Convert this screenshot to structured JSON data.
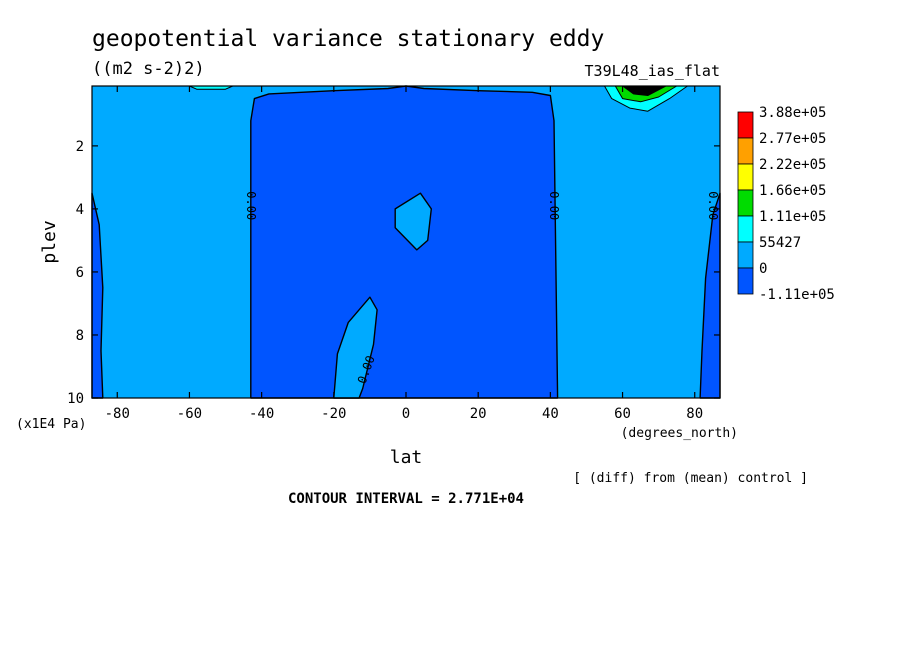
{
  "chart_data": {
    "type": "heatmap",
    "title": "geopotential variance stationary eddy",
    "units": "((m2 s-2)2)",
    "experiment": "T39L48_ias_flat",
    "xlabel": "lat",
    "x_units": "(degrees_north)",
    "ylabel": "plev",
    "y_units": "(x1E4 Pa)",
    "xlim": [
      -87,
      87
    ],
    "ylim": [
      10,
      0.1
    ],
    "y_inverted": true,
    "x_ticks": [
      "-80",
      "-60",
      "-40",
      "-20",
      "0",
      "20",
      "40",
      "60",
      "80"
    ],
    "y_ticks": [
      "2",
      "4",
      "6",
      "8",
      "10"
    ],
    "contour_labels": [
      "0.00",
      "0.00",
      "0.00",
      "0.00"
    ],
    "contour_interval": "CONTOUR INTERVAL = 2.771E+04",
    "note": "[ (diff) from (mean) control ]",
    "legend": {
      "labels": [
        "3.88e+05",
        "2.77e+05",
        "2.22e+05",
        "1.66e+05",
        "1.11e+05",
        "55427",
        "0",
        "-1.11e+05"
      ],
      "colors": [
        "#ff0000",
        "#ffa000",
        "#ffff00",
        "#00dc00",
        "#00ffff",
        "#00aaff",
        "#0055ff"
      ]
    },
    "regions": [
      {
        "level": "negative",
        "label": "blue region over the southern pole",
        "points": [
          [
            -87,
            3.5
          ],
          [
            -85,
            4.5
          ],
          [
            -84,
            6.5
          ],
          [
            -84.5,
            8.5
          ],
          [
            -84,
            10
          ],
          [
            -87,
            10
          ]
        ]
      },
      {
        "level": "negative",
        "label": "large negative region from 43S to 42N",
        "points": [
          [
            -43,
            10
          ],
          [
            -43,
            1.2
          ],
          [
            -42,
            0.5
          ],
          [
            -38,
            0.35
          ],
          [
            -20,
            0.25
          ],
          [
            -5,
            0.18
          ],
          [
            0,
            0.1
          ],
          [
            5,
            0.18
          ],
          [
            20,
            0.25
          ],
          [
            35,
            0.3
          ],
          [
            40,
            0.4
          ],
          [
            41,
            1.2
          ],
          [
            42,
            10
          ]
        ]
      },
      {
        "level": "negative",
        "label": "blue region over the northern pole",
        "points": [
          [
            87,
            3.5
          ],
          [
            85,
            4.2
          ],
          [
            83,
            6.2
          ],
          [
            82,
            8.5
          ],
          [
            81.5,
            10
          ],
          [
            87,
            10
          ]
        ]
      },
      {
        "level": "positive",
        "label": "positive pocket near 4 plev",
        "points": [
          [
            -3,
            4
          ],
          [
            4,
            3.5
          ],
          [
            7,
            4
          ],
          [
            6,
            5
          ],
          [
            3,
            5.3
          ],
          [
            -3,
            4.6
          ]
        ]
      },
      {
        "level": "positive",
        "label": "positive tongue near 15S",
        "points": [
          [
            -20,
            10
          ],
          [
            -19,
            8.6
          ],
          [
            -16,
            7.6
          ],
          [
            -10,
            6.8
          ],
          [
            -8,
            7.2
          ],
          [
            -9,
            8.3
          ],
          [
            -12,
            9.7
          ],
          [
            -13,
            10
          ]
        ]
      },
      {
        "level": "high",
        "label": "upper-level maximum near 65N",
        "points": [
          [
            55,
            0.1
          ],
          [
            57,
            0.5
          ],
          [
            62,
            0.8
          ],
          [
            67,
            0.9
          ],
          [
            73,
            0.5
          ],
          [
            78,
            0.1
          ]
        ]
      },
      {
        "level": "higher",
        "label": "inner maximum near 65N",
        "points": [
          [
            58,
            0.1
          ],
          [
            60,
            0.5
          ],
          [
            65,
            0.6
          ],
          [
            70,
            0.45
          ],
          [
            75,
            0.1
          ]
        ]
      },
      {
        "level": "peak",
        "label": "core maximum near 65N",
        "points": [
          [
            60,
            0.1
          ],
          [
            63,
            0.35
          ],
          [
            67,
            0.4
          ],
          [
            72,
            0.1
          ]
        ]
      },
      {
        "level": "high",
        "label": "small maximum near 55S",
        "points": [
          [
            -60,
            0.1
          ],
          [
            -58,
            0.2
          ],
          [
            -50,
            0.2
          ],
          [
            -48,
            0.1
          ]
        ]
      }
    ]
  }
}
